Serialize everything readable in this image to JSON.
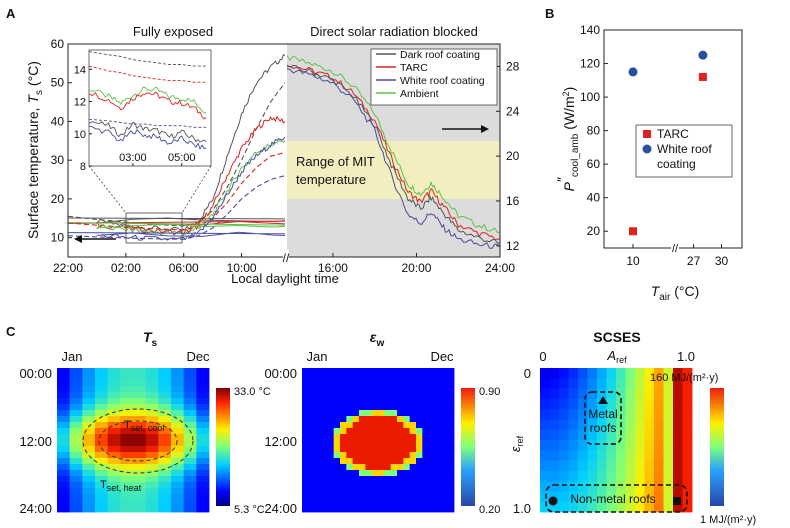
{
  "panels": {
    "a": "A",
    "b": "B",
    "c": "C"
  },
  "chart_data": [
    {
      "id": "A",
      "type": "line",
      "section_labels": [
        "Fully exposed",
        "Direct solar radiation blocked"
      ],
      "xlabel": "Local daylight time",
      "x_ticks": [
        "22:00",
        "02:00",
        "06:00",
        "10:00",
        "16:00",
        "20:00",
        "24:00"
      ],
      "ylabel_left_parts": [
        "Surface temperature, ",
        "T",
        "s",
        " (°C)"
      ],
      "y_left_ticks": [
        10,
        20,
        30,
        40,
        50,
        60
      ],
      "ylim_left": [
        5,
        60
      ],
      "y_right_ticks": [
        12,
        16,
        20,
        24,
        28
      ],
      "ylim_right": [
        11,
        30
      ],
      "legend": [
        {
          "name": "Dark roof coating",
          "color": "#555555"
        },
        {
          "name": "TARC",
          "color": "#e02020"
        },
        {
          "name": "White roof coating",
          "color": "#4a4aa0"
        },
        {
          "name": "Ambient",
          "color": "#5cc24a"
        }
      ],
      "mit_band_label": [
        "Range of MIT",
        "temperature"
      ],
      "mit_band_right_axis": [
        16.2,
        21.4
      ],
      "left_series_hours": [
        22,
        0,
        2,
        4,
        6,
        7,
        8,
        9,
        10,
        11,
        12,
        13
      ],
      "left_series": [
        {
          "name": "Dark roof coating",
          "values": [
            15,
            14.2,
            13.1,
            12.4,
            11.8,
            14,
            20,
            31,
            42,
            50,
            54,
            57
          ]
        },
        {
          "name": "TARC",
          "values": [
            14,
            13.3,
            12.5,
            11.8,
            11.2,
            13,
            18,
            26,
            33,
            38,
            41,
            40
          ]
        },
        {
          "name": "Ambient",
          "values": [
            13.5,
            12.8,
            12.1,
            11.5,
            11,
            12.5,
            16,
            22,
            28,
            32,
            34,
            35
          ]
        },
        {
          "name": "White roof coating",
          "values": [
            11.2,
            10.6,
            10.1,
            9.7,
            9.5,
            11,
            15,
            21,
            27,
            31,
            34,
            36
          ]
        }
      ],
      "right_series_hours": [
        13.8,
        15,
        16,
        17,
        18,
        18.8,
        19.6,
        20.2,
        20.7,
        21.3,
        22,
        23,
        24
      ],
      "right_series": [
        {
          "name": "Ambient",
          "values": [
            28.8,
            28.2,
            27.6,
            26.2,
            23.8,
            20.5,
            17.5,
            16.6,
            17.6,
            16.3,
            14.7,
            13.8,
            13.2
          ]
        },
        {
          "name": "TARC",
          "values": [
            28.2,
            27.6,
            27,
            25.6,
            23.2,
            19.8,
            16.8,
            15.9,
            16.9,
            15.5,
            13.9,
            13.1,
            12.6
          ]
        },
        {
          "name": "Dark roof coating",
          "values": [
            28,
            27.5,
            26.8,
            25.3,
            22.8,
            19.2,
            16.2,
            15.3,
            16.3,
            14.9,
            13.4,
            12.7,
            12.2
          ]
        },
        {
          "name": "White roof coating",
          "values": [
            27.8,
            27.2,
            26.5,
            25,
            22.3,
            18.2,
            14.8,
            14,
            15,
            13.6,
            12.6,
            12.1,
            11.9
          ]
        }
      ],
      "dashed_series": [
        {
          "name": "Dark roof coating",
          "values": [
            15.5,
            14.7,
            14,
            13.4,
            13,
            14,
            17,
            23,
            30,
            38,
            45,
            50
          ]
        },
        {
          "name": "TARC",
          "values": [
            13.8,
            13.2,
            12.7,
            12.3,
            12,
            12.8,
            15,
            19,
            24,
            28,
            31,
            32
          ]
        },
        {
          "name": "White roof coating",
          "values": [
            10.5,
            10.2,
            9.9,
            9.7,
            9.6,
            10.5,
            12.5,
            16,
            20,
            23,
            25,
            26
          ]
        }
      ],
      "inset": {
        "x_ticks": [
          "03:00",
          "05:00"
        ],
        "y_ticks": [
          8,
          10,
          12,
          14
        ],
        "ylim": [
          8,
          15.2
        ],
        "hours": [
          1.2,
          2,
          2.5,
          3,
          3.5,
          4,
          4.5,
          5,
          5.5,
          6
        ],
        "series": [
          {
            "name": "Ambient",
            "values": [
              12.8,
              12.3,
              11.9,
              12.4,
              12.8,
              12.7,
              12.3,
              12.2,
              12,
              11.3
            ]
          },
          {
            "name": "TARC",
            "values": [
              12.6,
              12.1,
              11.6,
              12.2,
              12.6,
              12.4,
              12,
              11.9,
              11.6,
              11
            ]
          },
          {
            "name": "Dark roof coating",
            "values": [
              10.8,
              10.5,
              9.9,
              10.6,
              10.3,
              10.2,
              9.8,
              10.1,
              9.7,
              9.5
            ]
          },
          {
            "name": "White roof coating",
            "values": [
              10.4,
              10.1,
              9.5,
              10.2,
              9.9,
              9.8,
              9.4,
              9.7,
              9.3,
              9.1
            ]
          }
        ],
        "dashed": [
          {
            "name": "Dark roof coating",
            "values": [
              15.1,
              14.9,
              14.8,
              14.6,
              14.5,
              14.4,
              14.3,
              14.3,
              14.2,
              14.2
            ]
          },
          {
            "name": "TARC",
            "values": [
              14.2,
              13.9,
              13.8,
              13.6,
              13.5,
              13.4,
              13.3,
              13.3,
              13.2,
              13.2
            ]
          },
          {
            "name": "White roof coating",
            "values": [
              10.9,
              10.8,
              10.7,
              10.6,
              10.6,
              10.5,
              10.5,
              10.5,
              10.4,
              10.4
            ]
          }
        ]
      }
    },
    {
      "id": "B",
      "type": "scatter",
      "ylabel_parts": [
        "P",
        "″",
        "cool_amb",
        " (W/m",
        "2",
        ")"
      ],
      "xlabel_parts": [
        "T",
        "air",
        " (°C)"
      ],
      "x_ticks": [
        "10",
        "27",
        "30"
      ],
      "y_ticks": [
        20,
        40,
        60,
        80,
        100,
        120,
        140
      ],
      "ylim": [
        10,
        140
      ],
      "legend": [
        {
          "name": "TARC",
          "color": "#e02020",
          "marker": "square"
        },
        {
          "name": "White roof coating",
          "color": "#2a4fa0",
          "marker": "circle"
        }
      ],
      "series": [
        {
          "name": "TARC",
          "x": [
            10,
            28
          ],
          "y": [
            20,
            112
          ]
        },
        {
          "name": "White roof coating",
          "x": [
            10,
            28
          ],
          "y": [
            115,
            125
          ]
        }
      ]
    },
    {
      "id": "C1",
      "type": "heatmap",
      "title": "T",
      "title_sub": "s",
      "x_labels": [
        "Jan",
        "Dec"
      ],
      "y_labels": [
        "00:00",
        "12:00",
        "24:00"
      ],
      "colorbar": [
        "33.0 °C",
        "5.3 °C"
      ],
      "annotations": [
        [
          "T",
          "set, cool"
        ],
        [
          "T",
          "set, heat"
        ]
      ]
    },
    {
      "id": "C2",
      "type": "heatmap",
      "title": "ε",
      "title_sub": "w",
      "x_labels": [
        "Jan",
        "Dec"
      ],
      "y_labels": [
        "00:00",
        "12:00",
        "24:00"
      ],
      "colorbar": [
        "0.90",
        "0.20"
      ]
    },
    {
      "id": "C3",
      "type": "heatmap",
      "title": "SCSES",
      "x_axis_parts": [
        "A",
        "ref"
      ],
      "x_labels": [
        "0",
        "1.0"
      ],
      "y_axis_parts": [
        "ε",
        "ref"
      ],
      "y_labels": [
        "0",
        "1.0"
      ],
      "colorbar": [
        "160 MJ/(m²·y)",
        "1 MJ/(m²·y)"
      ],
      "boxes": [
        [
          "Metal",
          "roofs"
        ],
        [
          "Non-metal roofs"
        ]
      ]
    }
  ]
}
